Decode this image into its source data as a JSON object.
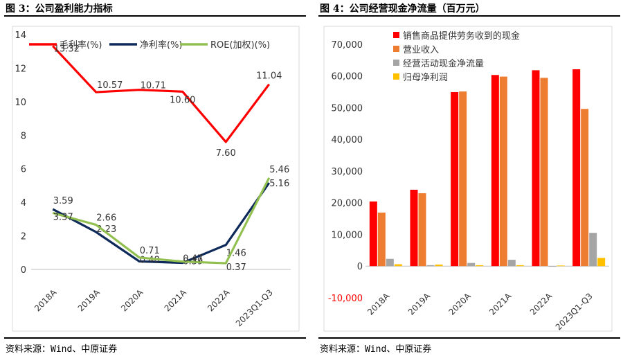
{
  "panels": {
    "left": {
      "title": "图 3：公司盈利能力指标",
      "source": "资料来源：Wind、中原证券"
    },
    "right": {
      "title": "图 4：公司经营现金净流量（百万元）",
      "source": "资料来源：Wind、中原证券"
    }
  },
  "chart_data": [
    {
      "type": "line",
      "title": "",
      "categories": [
        "2018A",
        "2019A",
        "2020A",
        "2021A",
        "2022A",
        "2023Q1-Q3"
      ],
      "ylim": [
        0,
        14
      ],
      "yticks": [
        "0",
        "2",
        "4",
        "6",
        "8",
        "10",
        "12",
        "14"
      ],
      "grid": false,
      "legend_position": "top",
      "series": [
        {
          "name": "毛利率(%)",
          "color": "#ff0000",
          "values": [
            13.32,
            10.57,
            10.71,
            10.6,
            7.6,
            11.04
          ],
          "labels": [
            "13.32",
            "10.57",
            "10.71",
            "10.60",
            "7.60",
            "11.04"
          ]
        },
        {
          "name": "净利率(%)",
          "color": "#0d2a5a",
          "values": [
            3.59,
            2.23,
            0.48,
            0.39,
            1.46,
            5.16
          ],
          "labels": [
            "3.59",
            "2.23",
            "0.48",
            "0.39",
            "1.46",
            "5.16"
          ]
        },
        {
          "name": "ROE(加权)(%)",
          "color": "#92c050",
          "values": [
            3.37,
            2.66,
            0.71,
            0.47,
            0.37,
            5.46
          ],
          "labels": [
            "3.37",
            "2.66",
            "0.71",
            "0.47",
            "0.37",
            "5.46"
          ]
        }
      ]
    },
    {
      "type": "bar",
      "title": "",
      "categories": [
        "2018A",
        "2019A",
        "2020A",
        "2021A",
        "2022A",
        "2023Q1-Q3"
      ],
      "ylim": [
        -10000,
        75000
      ],
      "yticks": [
        "-10,000",
        "0",
        "10,000",
        "20,000",
        "30,000",
        "40,000",
        "50,000",
        "60,000",
        "70,000"
      ],
      "grid": false,
      "legend_position": "top-left",
      "series": [
        {
          "name": "销售商品提供劳务收到的现金",
          "color": "#ff0000",
          "values": [
            20400,
            24100,
            54900,
            60300,
            61800,
            62100
          ]
        },
        {
          "name": "营业收入",
          "color": "#ed7d31",
          "values": [
            16900,
            23000,
            55100,
            59800,
            59400,
            49600
          ]
        },
        {
          "name": "经营活动现金净流量",
          "color": "#a5a5a5",
          "values": [
            2300,
            300,
            1000,
            2000,
            -200,
            10500
          ]
        },
        {
          "name": "归母净利润",
          "color": "#ffc000",
          "values": [
            600,
            500,
            300,
            300,
            200,
            2600
          ]
        }
      ]
    }
  ]
}
